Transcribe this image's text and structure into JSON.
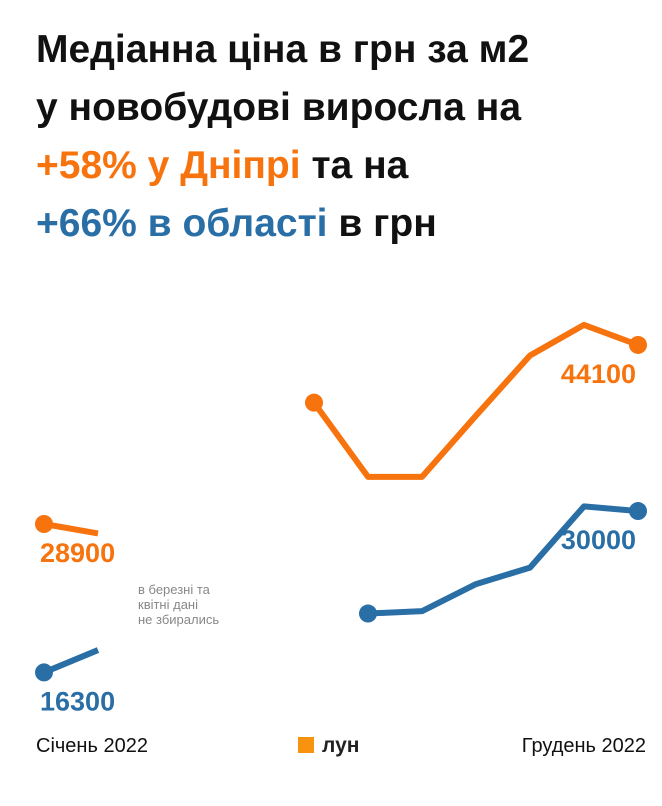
{
  "chart_data": {
    "type": "line",
    "title_parts": [
      "Медіанна ціна в грн за м2",
      "у новобудові виросла на",
      "+58% у Дніпрі",
      "та на",
      "+66% в області",
      "в грн"
    ],
    "categories": [
      "Січень 2022",
      null,
      null,
      null,
      null,
      null,
      null,
      null,
      null,
      null,
      null,
      "Грудень 2022"
    ],
    "series": [
      {
        "name": "+58% у Дніпрі",
        "color": "#f7730e",
        "values": [
          28900,
          28100,
          null,
          null,
          null,
          39200,
          32900,
          32900,
          38100,
          43200,
          45800,
          44100
        ]
      },
      {
        "name": "+66% в області",
        "color": "#2a6ea6",
        "values": [
          16300,
          18200,
          null,
          null,
          null,
          null,
          21300,
          21500,
          23800,
          25200,
          30400,
          30000
        ]
      }
    ],
    "annotation": [
      "в березні та",
      "квітні дані",
      "не збирались"
    ],
    "logo": "лун"
  }
}
